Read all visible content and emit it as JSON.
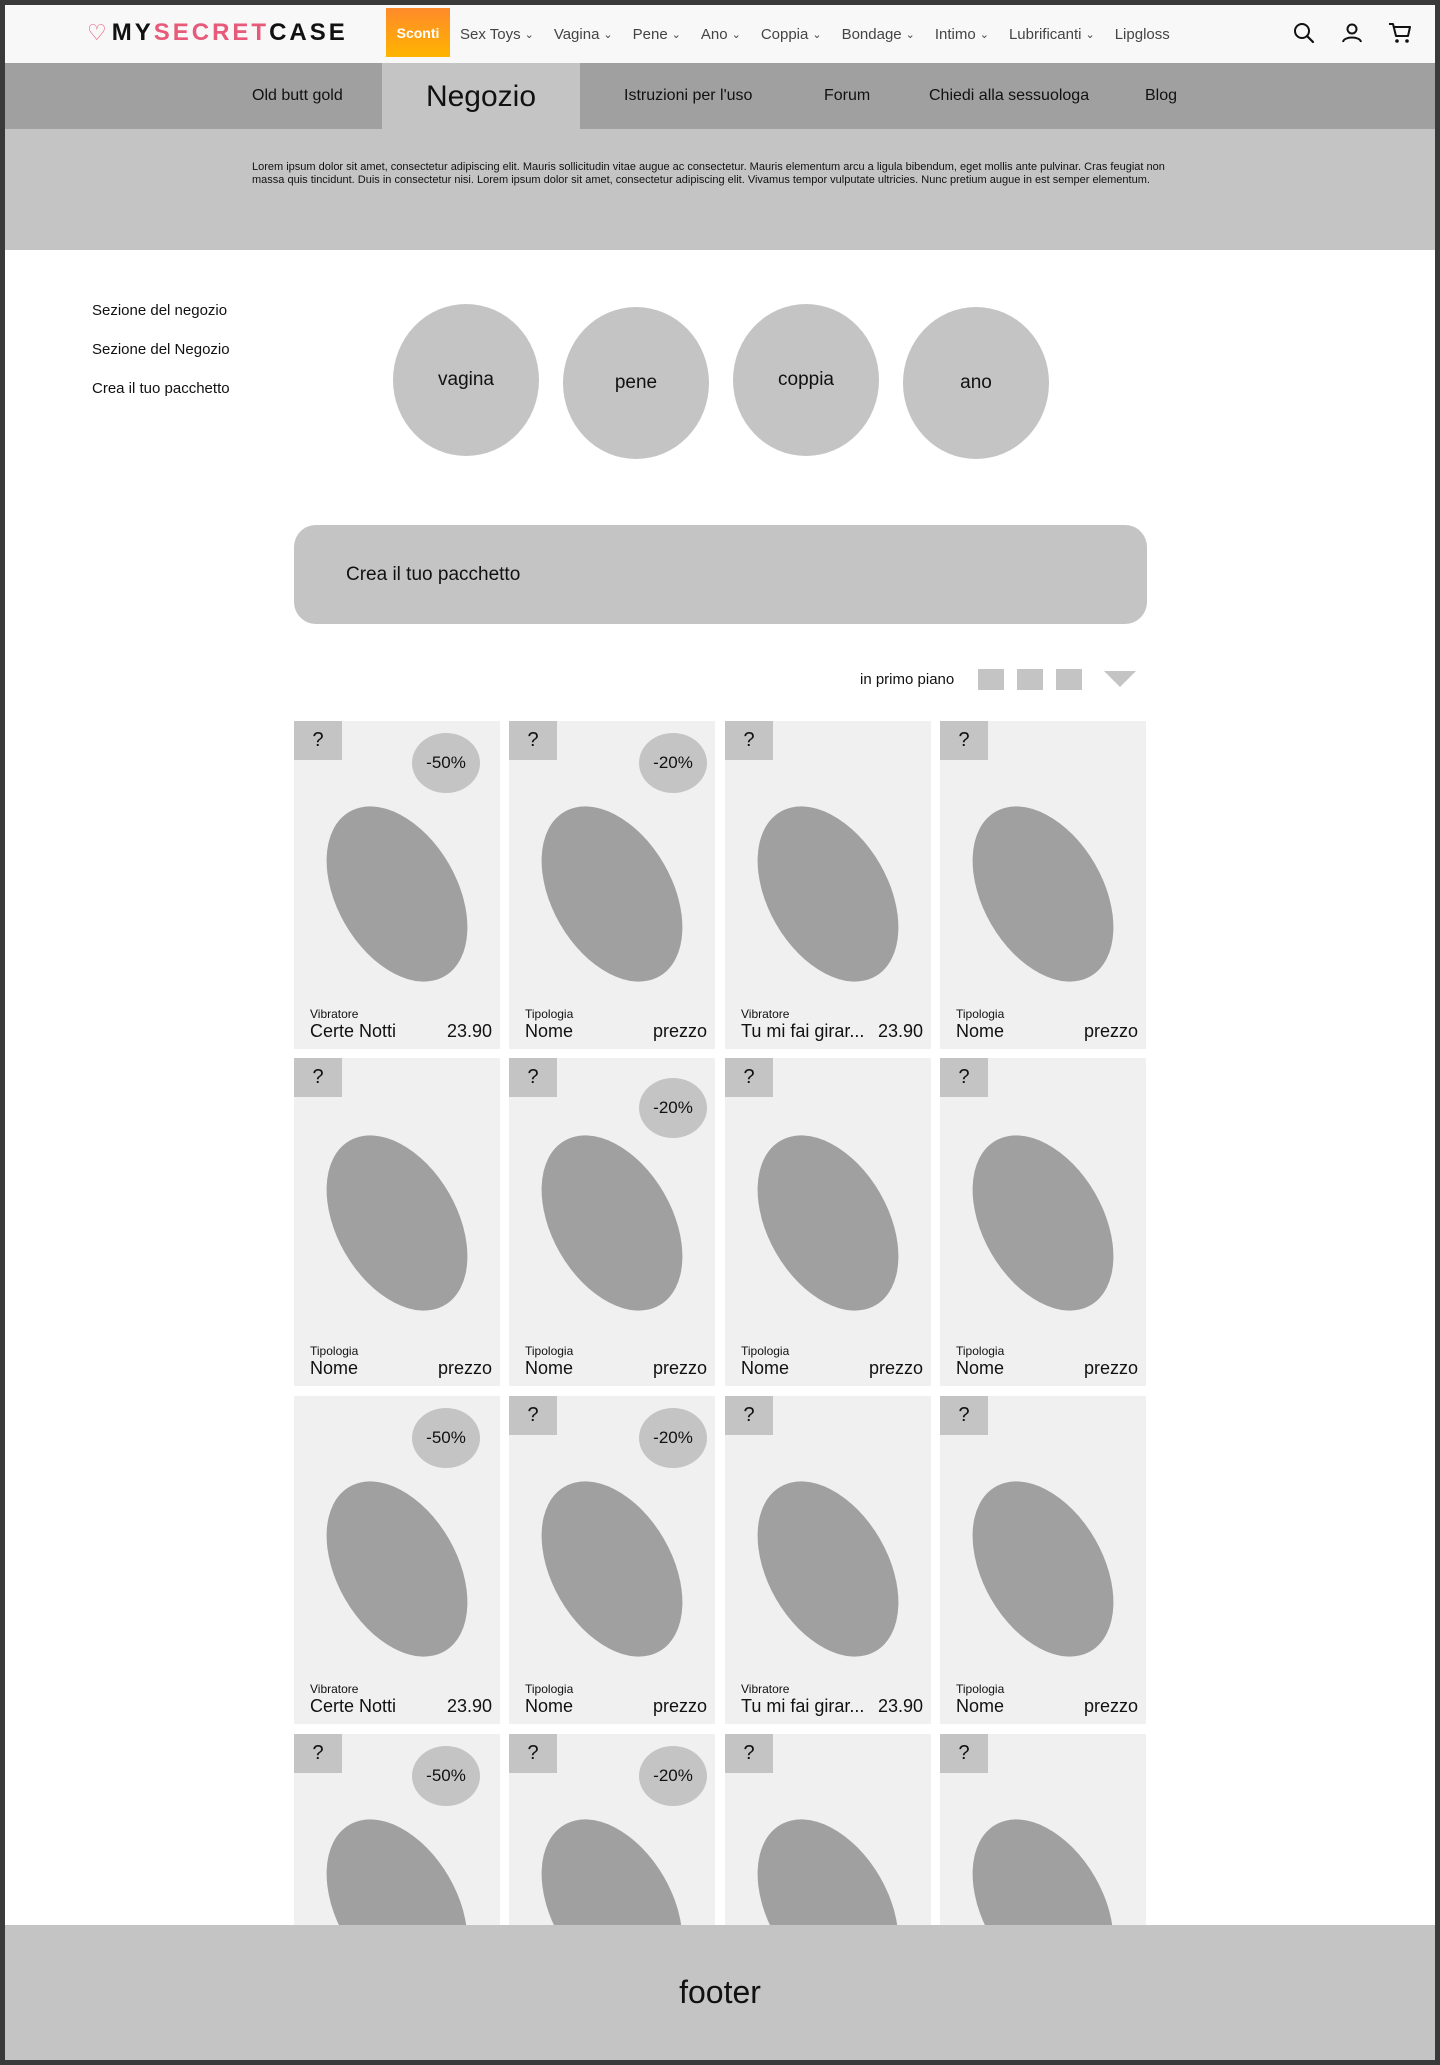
{
  "header": {
    "logo": {
      "my": "MY",
      "secret": "SECRET",
      "case": "CASE"
    },
    "sconti": "Sconti",
    "nav": [
      {
        "label": "Sex Toys",
        "dropdown": true
      },
      {
        "label": "Vagina",
        "dropdown": true
      },
      {
        "label": "Pene",
        "dropdown": true
      },
      {
        "label": "Ano",
        "dropdown": true
      },
      {
        "label": "Coppia",
        "dropdown": true
      },
      {
        "label": "Bondage",
        "dropdown": true
      },
      {
        "label": "Intimo",
        "dropdown": true
      },
      {
        "label": "Lubrificanti",
        "dropdown": true
      },
      {
        "label": "Lipgloss",
        "dropdown": false
      }
    ],
    "icons": [
      "search-icon",
      "account-icon",
      "cart-icon"
    ]
  },
  "subnav": {
    "old": "Old butt gold",
    "active": "Negozio",
    "istruzioni": "Istruzioni per l'uso",
    "forum": "Forum",
    "chiedi": "Chiedi alla sessuologa",
    "blog": "Blog"
  },
  "intro": {
    "text": "Lorem ipsum dolor sit amet, consectetur adipiscing elit. Mauris sollicitudin vitae augue ac consectetur. Mauris elementum arcu a ligula bibendum, eget mollis ante pulvinar. Cras feugiat non massa quis tincidunt. Duis in consectetur nisi. Lorem ipsum dolor sit amet, consectetur adipiscing elit. Vivamus tempor vulputate ultricies. Nunc pretium augue in est semper elementum."
  },
  "side_menu": [
    "Sezione del negozio",
    "Sezione del Negozio",
    "Crea il tuo pacchetto"
  ],
  "categories": [
    "vagina",
    "pene",
    "coppia",
    "ano"
  ],
  "pacchetto_label": "Crea il tuo pacchetto",
  "sort": {
    "label": "in primo piano"
  },
  "products": [
    {
      "q": "?",
      "badge": "-50%",
      "type": "Vibratore",
      "name": "Certe Notti",
      "price": "23.90"
    },
    {
      "q": "?",
      "badge": "-20%",
      "type": "Tipologia",
      "name": "Nome",
      "price": "prezzo"
    },
    {
      "q": "?",
      "badge": "",
      "type": "Vibratore",
      "name": "Tu mi fai girar...",
      "price": "23.90"
    },
    {
      "q": "?",
      "badge": "",
      "type": "Tipologia",
      "name": "Nome",
      "price": "prezzo"
    },
    {
      "q": "?",
      "badge": "",
      "type": "Tipologia",
      "name": "Nome",
      "price": "prezzo"
    },
    {
      "q": "?",
      "badge": "-20%",
      "type": "Tipologia",
      "name": "Nome",
      "price": "prezzo"
    },
    {
      "q": "?",
      "badge": "",
      "type": "Tipologia",
      "name": "Nome",
      "price": "prezzo"
    },
    {
      "q": "?",
      "badge": "",
      "type": "Tipologia",
      "name": "Nome",
      "price": "prezzo"
    },
    {
      "q": "",
      "badge": "-50%",
      "type": "Vibratore",
      "name": "Certe Notti",
      "price": "23.90"
    },
    {
      "q": "?",
      "badge": "-20%",
      "type": "Tipologia",
      "name": "Nome",
      "price": "prezzo"
    },
    {
      "q": "?",
      "badge": "",
      "type": "Vibratore",
      "name": "Tu mi fai girar...",
      "price": "23.90"
    },
    {
      "q": "?",
      "badge": "",
      "type": "Tipologia",
      "name": "Nome",
      "price": "prezzo"
    },
    {
      "q": "?",
      "badge": "-50%",
      "type": "",
      "name": "",
      "price": ""
    },
    {
      "q": "?",
      "badge": "-20%",
      "type": "",
      "name": "",
      "price": ""
    },
    {
      "q": "?",
      "badge": "",
      "type": "",
      "name": "",
      "price": ""
    },
    {
      "q": "?",
      "badge": "",
      "type": "",
      "name": "",
      "price": ""
    }
  ],
  "footer": "footer"
}
